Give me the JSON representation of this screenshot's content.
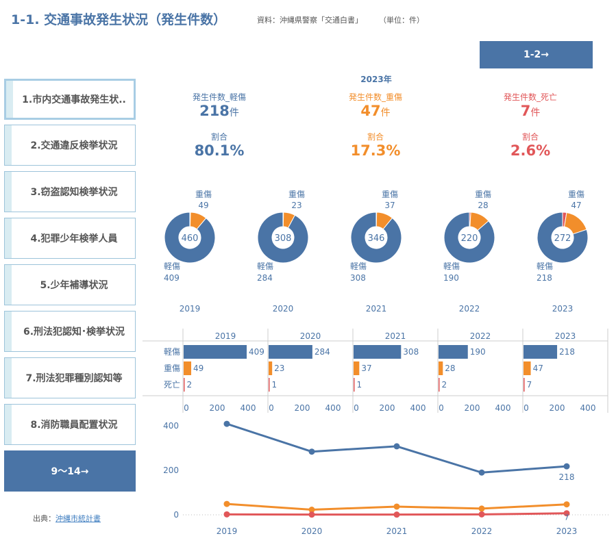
{
  "header": {
    "title": "1-1. 交通事故発生状況（発生件数）",
    "source": "資料：沖縄県警察「交通白書」",
    "unit": "（単位：件）",
    "next_label": "1-2→"
  },
  "sidebar": {
    "items": [
      {
        "label": "1.市内交通事故発生状.."
      },
      {
        "label": "2.交通違反検挙状況"
      },
      {
        "label": "3.窃盗認知検挙状況"
      },
      {
        "label": "4.犯罪少年検挙人員"
      },
      {
        "label": "5.少年補導状況"
      },
      {
        "label": "6.刑法犯認知･検挙状況"
      },
      {
        "label": "7.刑法犯罪種別認知等"
      },
      {
        "label": "8.消防職員配置状況"
      }
    ],
    "more_label": "9～14→",
    "credit_prefix": "出典：",
    "credit_link": "沖縄市統計書"
  },
  "kpi": {
    "year": "2023年",
    "cards": [
      {
        "label": "発生件数_軽傷",
        "value": "218",
        "unit": "件",
        "ratio_label": "割合",
        "ratio": "80.1%",
        "color": "#4a74a6"
      },
      {
        "label": "発生件数_重傷",
        "value": "47",
        "unit": "件",
        "ratio_label": "割合",
        "ratio": "17.3%",
        "color": "#f28e2b"
      },
      {
        "label": "発生件数_死亡",
        "value": "7",
        "unit": "件",
        "ratio_label": "割合",
        "ratio": "2.6%",
        "color": "#e15759"
      }
    ]
  },
  "colors": {
    "minor": "#4a74a6",
    "serious": "#f28e2b",
    "death": "#e15759"
  },
  "chart_data": [
    {
      "type": "pie",
      "years": [
        "2019",
        "2020",
        "2021",
        "2022",
        "2023"
      ],
      "totals": [
        460,
        308,
        346,
        220,
        272
      ],
      "series": [
        {
          "name": "軽傷",
          "values": [
            409,
            284,
            308,
            190,
            218
          ]
        },
        {
          "name": "重傷",
          "values": [
            49,
            23,
            37,
            28,
            47
          ]
        },
        {
          "name": "死亡",
          "values": [
            2,
            1,
            1,
            2,
            7
          ]
        }
      ]
    },
    {
      "type": "bar",
      "facets": [
        "2019",
        "2020",
        "2021",
        "2022",
        "2023"
      ],
      "categories": [
        "軽傷",
        "重傷",
        "死亡"
      ],
      "values": [
        [
          409,
          49,
          2
        ],
        [
          284,
          23,
          1
        ],
        [
          308,
          37,
          1
        ],
        [
          190,
          28,
          2
        ],
        [
          218,
          47,
          7
        ]
      ],
      "xticks": [
        "0",
        "200",
        "400"
      ],
      "xlim": [
        0,
        500
      ]
    },
    {
      "type": "line",
      "x": [
        "2019",
        "2020",
        "2021",
        "2022",
        "2023"
      ],
      "series": [
        {
          "name": "軽傷",
          "values": [
            409,
            284,
            308,
            190,
            218
          ]
        },
        {
          "name": "重傷",
          "values": [
            49,
            23,
            37,
            28,
            47
          ]
        },
        {
          "name": "死亡",
          "values": [
            2,
            1,
            1,
            2,
            7
          ]
        }
      ],
      "yticks": [
        "400",
        "200",
        "0"
      ],
      "ylim": [
        0,
        430
      ],
      "end_labels": [
        "218",
        "7"
      ]
    }
  ]
}
